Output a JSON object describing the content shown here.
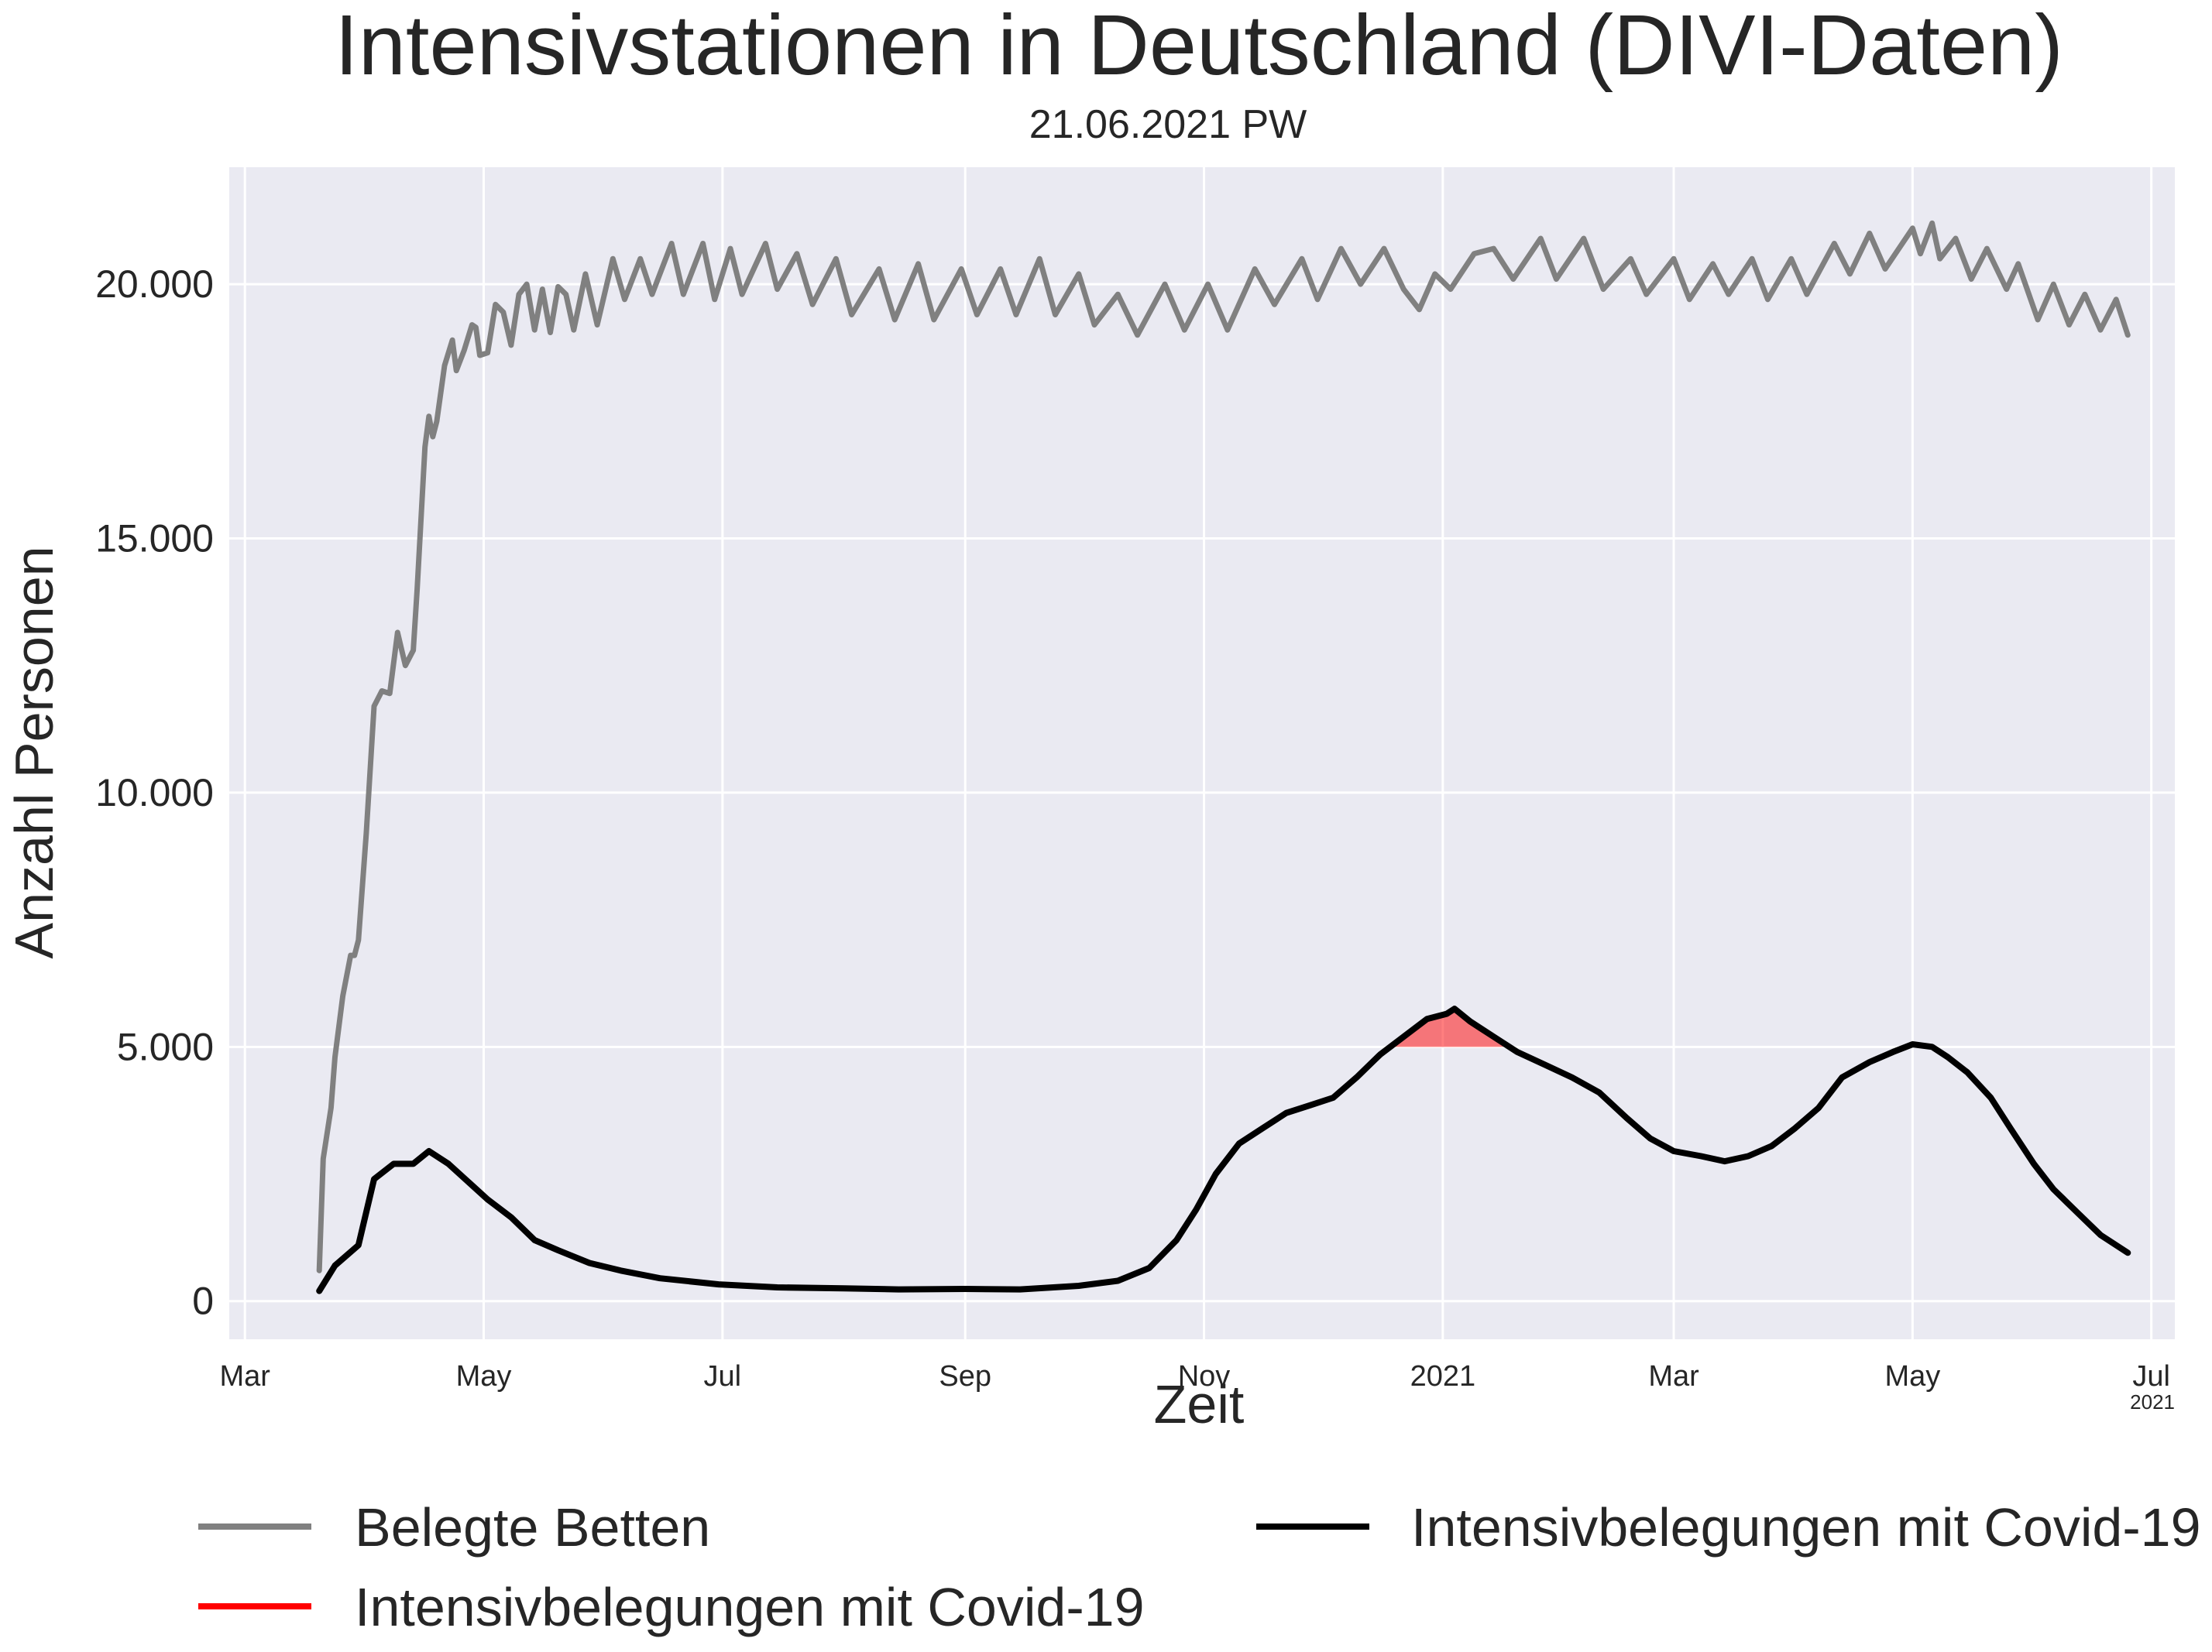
{
  "chart_data": {
    "type": "line",
    "title": "Intensivstationen in Deutschland (DIVI-Daten)",
    "subtitle": "21.06.2021 PW",
    "xlabel": "Zeit",
    "ylabel": "Anzahl Personen",
    "x_offset_label": "2021",
    "xlim": [
      "2020-02-26",
      "2021-07-07"
    ],
    "ylim": [
      -750,
      22300
    ],
    "grid": true,
    "threshold": 5000,
    "x_ticks": [
      {
        "date": "2020-03-01",
        "label": "Mar"
      },
      {
        "date": "2020-05-01",
        "label": "May"
      },
      {
        "date": "2020-07-01",
        "label": "Jul"
      },
      {
        "date": "2020-09-01",
        "label": "Sep"
      },
      {
        "date": "2020-11-01",
        "label": "Nov"
      },
      {
        "date": "2021-01-01",
        "label": "2021"
      },
      {
        "date": "2021-03-01",
        "label": "Mar"
      },
      {
        "date": "2021-05-01",
        "label": "May"
      },
      {
        "date": "2021-07-01",
        "label": "Jul"
      }
    ],
    "y_ticks": [
      {
        "value": 0,
        "label": "0"
      },
      {
        "value": 5000,
        "label": "5.000"
      },
      {
        "value": 10000,
        "label": "10.000"
      },
      {
        "value": 15000,
        "label": "15.000"
      },
      {
        "value": 20000,
        "label": "20.000"
      }
    ],
    "series": [
      {
        "name": "Belegte Betten",
        "color": "#808080",
        "points": [
          [
            "2020-03-20",
            600
          ],
          [
            "2020-03-21",
            2800
          ],
          [
            "2020-03-23",
            3800
          ],
          [
            "2020-03-24",
            4800
          ],
          [
            "2020-03-26",
            6000
          ],
          [
            "2020-03-28",
            6800
          ],
          [
            "2020-03-29",
            6800
          ],
          [
            "2020-03-30",
            7100
          ],
          [
            "2020-04-01",
            9200
          ],
          [
            "2020-04-03",
            11700
          ],
          [
            "2020-04-05",
            12000
          ],
          [
            "2020-04-07",
            11950
          ],
          [
            "2020-04-09",
            13150
          ],
          [
            "2020-04-11",
            12500
          ],
          [
            "2020-04-13",
            12800
          ],
          [
            "2020-04-14",
            14000
          ],
          [
            "2020-04-16",
            16800
          ],
          [
            "2020-04-17",
            17400
          ],
          [
            "2020-04-18",
            17000
          ],
          [
            "2020-04-19",
            17300
          ],
          [
            "2020-04-21",
            18400
          ],
          [
            "2020-04-23",
            18900
          ],
          [
            "2020-04-24",
            18300
          ],
          [
            "2020-04-26",
            18700
          ],
          [
            "2020-04-28",
            19200
          ],
          [
            "2020-04-29",
            19150
          ],
          [
            "2020-04-30",
            18600
          ],
          [
            "2020-05-02",
            18650
          ],
          [
            "2020-05-04",
            19600
          ],
          [
            "2020-05-06",
            19450
          ],
          [
            "2020-05-08",
            18800
          ],
          [
            "2020-05-10",
            19800
          ],
          [
            "2020-05-12",
            20000
          ],
          [
            "2020-05-14",
            19100
          ],
          [
            "2020-05-16",
            19900
          ],
          [
            "2020-05-18",
            19050
          ],
          [
            "2020-05-20",
            19950
          ],
          [
            "2020-05-22",
            19800
          ],
          [
            "2020-05-24",
            19100
          ],
          [
            "2020-05-27",
            20200
          ],
          [
            "2020-05-30",
            19200
          ],
          [
            "2020-06-03",
            20500
          ],
          [
            "2020-06-06",
            19700
          ],
          [
            "2020-06-10",
            20500
          ],
          [
            "2020-06-13",
            19800
          ],
          [
            "2020-06-18",
            20800
          ],
          [
            "2020-06-21",
            19800
          ],
          [
            "2020-06-26",
            20800
          ],
          [
            "2020-06-29",
            19700
          ],
          [
            "2020-07-03",
            20700
          ],
          [
            "2020-07-06",
            19800
          ],
          [
            "2020-07-12",
            20800
          ],
          [
            "2020-07-15",
            19900
          ],
          [
            "2020-07-20",
            20600
          ],
          [
            "2020-07-24",
            19600
          ],
          [
            "2020-07-30",
            20500
          ],
          [
            "2020-08-03",
            19400
          ],
          [
            "2020-08-10",
            20300
          ],
          [
            "2020-08-14",
            19300
          ],
          [
            "2020-08-20",
            20400
          ],
          [
            "2020-08-24",
            19300
          ],
          [
            "2020-08-31",
            20300
          ],
          [
            "2020-09-04",
            19400
          ],
          [
            "2020-09-10",
            20300
          ],
          [
            "2020-09-14",
            19400
          ],
          [
            "2020-09-20",
            20500
          ],
          [
            "2020-09-24",
            19400
          ],
          [
            "2020-09-30",
            20200
          ],
          [
            "2020-10-04",
            19200
          ],
          [
            "2020-10-10",
            19800
          ],
          [
            "2020-10-15",
            19000
          ],
          [
            "2020-10-22",
            20000
          ],
          [
            "2020-10-27",
            19100
          ],
          [
            "2020-11-02",
            20000
          ],
          [
            "2020-11-07",
            19100
          ],
          [
            "2020-11-14",
            20300
          ],
          [
            "2020-11-19",
            19600
          ],
          [
            "2020-11-26",
            20500
          ],
          [
            "2020-11-30",
            19700
          ],
          [
            "2020-12-06",
            20700
          ],
          [
            "2020-12-11",
            20000
          ],
          [
            "2020-12-17",
            20700
          ],
          [
            "2020-12-22",
            19900
          ],
          [
            "2020-12-26",
            19500
          ],
          [
            "2020-12-30",
            20200
          ],
          [
            "2021-01-03",
            19900
          ],
          [
            "2021-01-09",
            20600
          ],
          [
            "2021-01-14",
            20700
          ],
          [
            "2021-01-19",
            20100
          ],
          [
            "2021-01-26",
            20900
          ],
          [
            "2021-01-30",
            20100
          ],
          [
            "2021-02-06",
            20900
          ],
          [
            "2021-02-11",
            19900
          ],
          [
            "2021-02-18",
            20500
          ],
          [
            "2021-02-22",
            19800
          ],
          [
            "2021-03-01",
            20500
          ],
          [
            "2021-03-05",
            19700
          ],
          [
            "2021-03-11",
            20400
          ],
          [
            "2021-03-15",
            19800
          ],
          [
            "2021-03-21",
            20500
          ],
          [
            "2021-03-25",
            19700
          ],
          [
            "2021-03-31",
            20500
          ],
          [
            "2021-04-04",
            19800
          ],
          [
            "2021-04-11",
            20800
          ],
          [
            "2021-04-15",
            20200
          ],
          [
            "2021-04-20",
            21000
          ],
          [
            "2021-04-24",
            20300
          ],
          [
            "2021-05-01",
            21100
          ],
          [
            "2021-05-03",
            20600
          ],
          [
            "2021-05-06",
            21200
          ],
          [
            "2021-05-08",
            20500
          ],
          [
            "2021-05-12",
            20900
          ],
          [
            "2021-05-16",
            20100
          ],
          [
            "2021-05-20",
            20700
          ],
          [
            "2021-05-25",
            19900
          ],
          [
            "2021-05-28",
            20400
          ],
          [
            "2021-06-02",
            19300
          ],
          [
            "2021-06-06",
            20000
          ],
          [
            "2021-06-10",
            19200
          ],
          [
            "2021-06-14",
            19800
          ],
          [
            "2021-06-18",
            19100
          ],
          [
            "2021-06-22",
            19700
          ],
          [
            "2021-06-25",
            19000
          ]
        ]
      },
      {
        "name": "Intensivbelegungen mit Covid-19",
        "color": "#000000",
        "points": [
          [
            "2020-03-20",
            200
          ],
          [
            "2020-03-24",
            700
          ],
          [
            "2020-03-30",
            1100
          ],
          [
            "2020-04-03",
            2400
          ],
          [
            "2020-04-08",
            2700
          ],
          [
            "2020-04-13",
            2700
          ],
          [
            "2020-04-17",
            2950
          ],
          [
            "2020-04-22",
            2700
          ],
          [
            "2020-04-27",
            2350
          ],
          [
            "2020-05-02",
            2000
          ],
          [
            "2020-05-08",
            1650
          ],
          [
            "2020-05-14",
            1200
          ],
          [
            "2020-05-20",
            1000
          ],
          [
            "2020-05-28",
            750
          ],
          [
            "2020-06-05",
            600
          ],
          [
            "2020-06-15",
            450
          ],
          [
            "2020-06-30",
            330
          ],
          [
            "2020-07-15",
            270
          ],
          [
            "2020-08-01",
            250
          ],
          [
            "2020-08-15",
            230
          ],
          [
            "2020-09-01",
            240
          ],
          [
            "2020-09-15",
            230
          ],
          [
            "2020-09-30",
            300
          ],
          [
            "2020-10-10",
            400
          ],
          [
            "2020-10-18",
            650
          ],
          [
            "2020-10-25",
            1200
          ],
          [
            "2020-10-30",
            1800
          ],
          [
            "2020-11-04",
            2500
          ],
          [
            "2020-11-10",
            3100
          ],
          [
            "2020-11-16",
            3400
          ],
          [
            "2020-11-22",
            3700
          ],
          [
            "2020-11-28",
            3850
          ],
          [
            "2020-12-04",
            4000
          ],
          [
            "2020-12-10",
            4400
          ],
          [
            "2020-12-16",
            4850
          ],
          [
            "2020-12-22",
            5200
          ],
          [
            "2020-12-28",
            5550
          ],
          [
            "2021-01-02",
            5650
          ],
          [
            "2021-01-04",
            5750
          ],
          [
            "2021-01-08",
            5500
          ],
          [
            "2021-01-14",
            5200
          ],
          [
            "2021-01-20",
            4900
          ],
          [
            "2021-01-27",
            4650
          ],
          [
            "2021-02-03",
            4400
          ],
          [
            "2021-02-10",
            4100
          ],
          [
            "2021-02-17",
            3600
          ],
          [
            "2021-02-23",
            3200
          ],
          [
            "2021-03-01",
            2950
          ],
          [
            "2021-03-08",
            2850
          ],
          [
            "2021-03-14",
            2750
          ],
          [
            "2021-03-20",
            2850
          ],
          [
            "2021-03-26",
            3050
          ],
          [
            "2021-04-01",
            3400
          ],
          [
            "2021-04-07",
            3800
          ],
          [
            "2021-04-13",
            4400
          ],
          [
            "2021-04-20",
            4700
          ],
          [
            "2021-04-26",
            4900
          ],
          [
            "2021-05-01",
            5050
          ],
          [
            "2021-05-06",
            5000
          ],
          [
            "2021-05-10",
            4800
          ],
          [
            "2021-05-15",
            4500
          ],
          [
            "2021-05-21",
            4000
          ],
          [
            "2021-05-26",
            3400
          ],
          [
            "2021-06-01",
            2700
          ],
          [
            "2021-06-06",
            2200
          ],
          [
            "2021-06-12",
            1750
          ],
          [
            "2021-06-18",
            1300
          ],
          [
            "2021-06-25",
            950
          ]
        ]
      }
    ],
    "fill": {
      "name": "Intensivbelegungen mit Covid-19",
      "color": "#ff0000",
      "opacity": 0.5,
      "above": 5000
    },
    "legend": {
      "position": "bottom",
      "items": [
        {
          "label": "Belegte Betten",
          "color": "#808080"
        },
        {
          "label": "Intensivbelegungen mit Covid-19",
          "color": "#000000"
        },
        {
          "label": "Intensivbelegungen mit Covid-19",
          "color": "#ff0000"
        }
      ]
    },
    "colors": {
      "plot_background": "#eaeaf2",
      "grid": "#ffffff"
    }
  }
}
